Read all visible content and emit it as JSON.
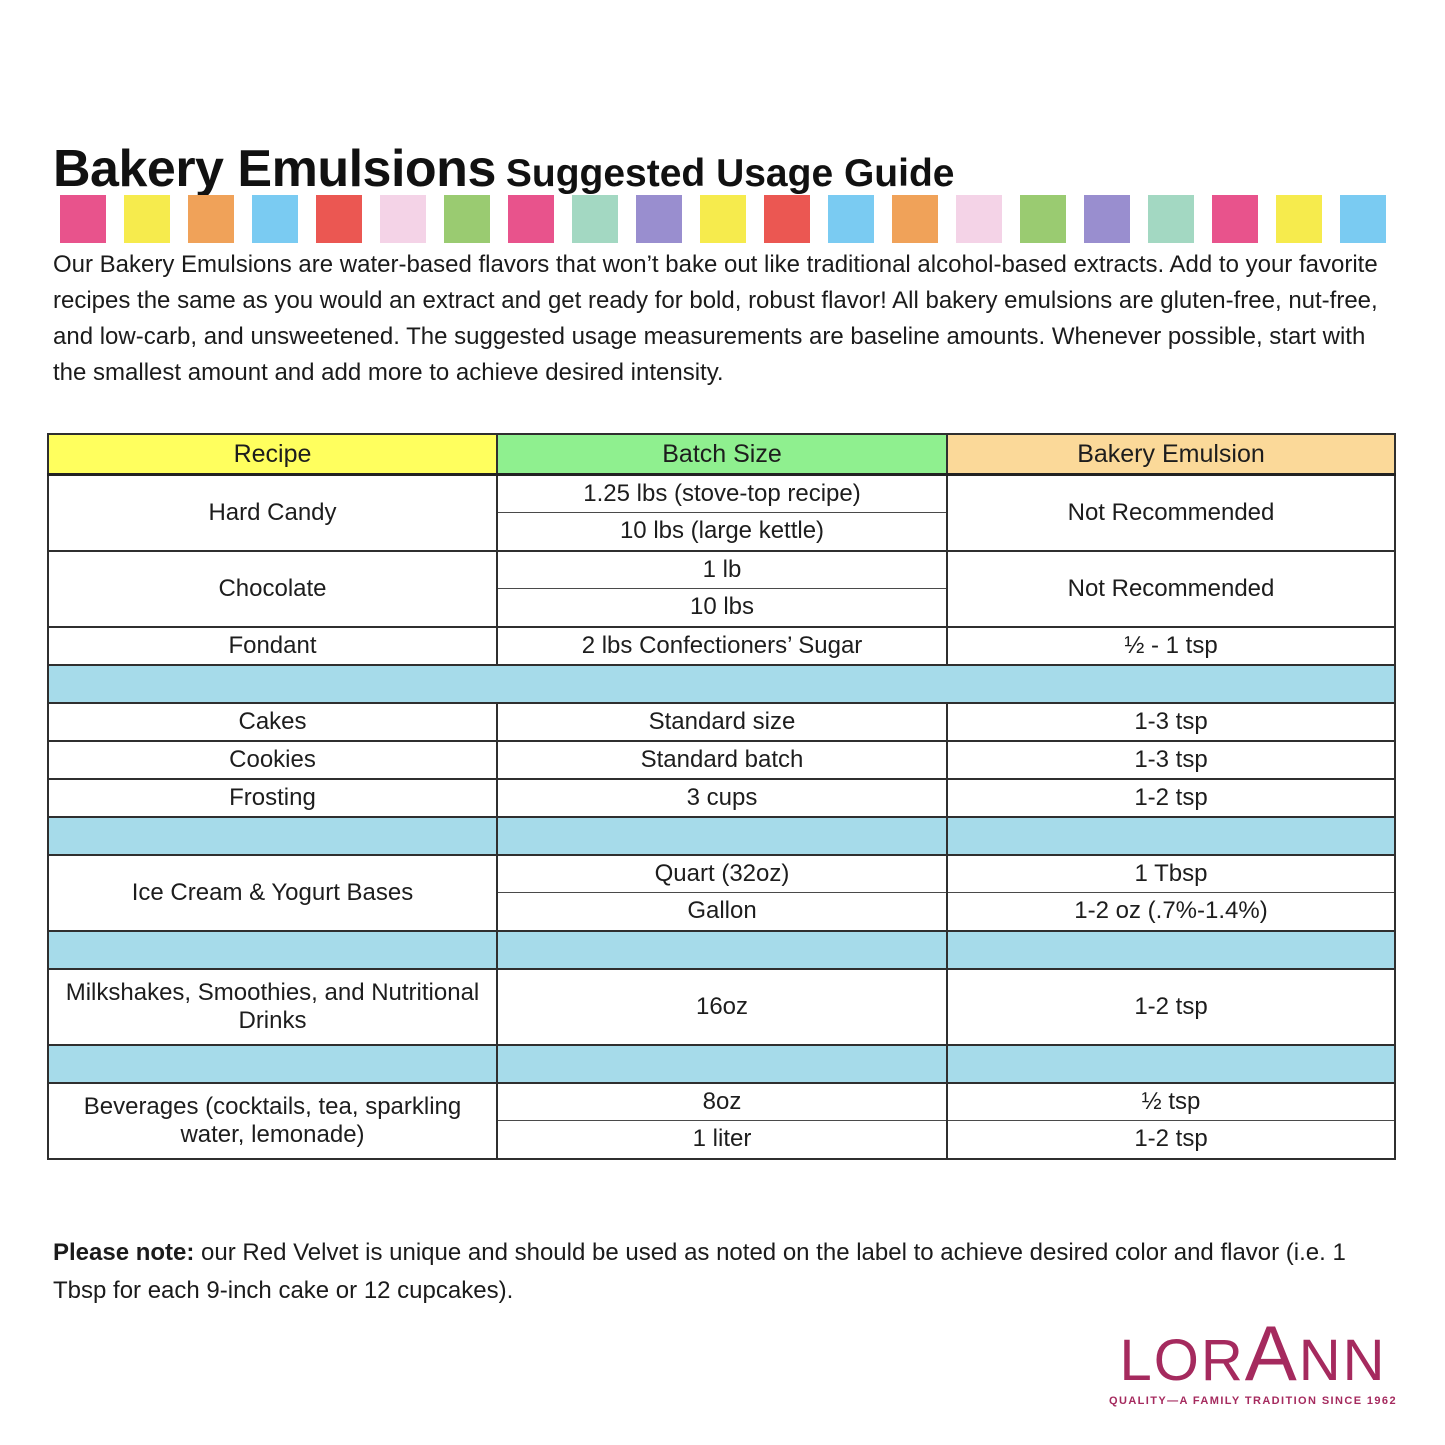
{
  "title": {
    "main": "Bakery Emulsions",
    "sub": "Suggested Usage Guide"
  },
  "palette": {
    "squares": [
      "#E8538C",
      "#F6EB4D",
      "#F0A259",
      "#7ACBF2",
      "#EB5752",
      "#F4D3E7",
      "#9ACB71",
      "#E8538C",
      "#A3D8C2",
      "#998ECF",
      "#F6EB4D",
      "#EB5752",
      "#7ACBF2",
      "#F0A259",
      "#F4D3E7",
      "#9ACB71",
      "#998ECF",
      "#A3D8C2",
      "#E8538C",
      "#F6EB4D",
      "#7ACBF2"
    ]
  },
  "intro": {
    "text": "Our Bakery Emulsions are water-based flavors that won’t bake out like traditional alcohol-based extracts. Add to your favorite recipes the same as you would an extract and get ready for bold, robust flavor! All bakery emulsions are gluten-free, nut-free, and low-carb, and unsweetened. The suggested usage measurements are baseline amounts. Whenever possible, start with the smallest amount and add more to achieve desired intensity."
  },
  "table": {
    "header": {
      "recipe": "Recipe",
      "batch": "Batch Size",
      "emulsion": "Bakery Emulsion"
    },
    "header_colors": {
      "recipe": "#FFFF5E",
      "batch": "#8FF08F",
      "emulsion": "#FBD999"
    },
    "spacer_color": "#A6DBEA",
    "hard_candy": {
      "recipe": "Hard Candy",
      "batch1": "1.25 lbs (stove-top recipe)",
      "batch2": "10 lbs (large kettle)",
      "emulsion": "Not Recommended"
    },
    "chocolate": {
      "recipe": "Chocolate",
      "batch1": "1 lb",
      "batch2": "10 lbs",
      "emulsion": "Not Recommended"
    },
    "fondant": {
      "recipe": "Fondant",
      "batch": "2 lbs Confectioners’ Sugar",
      "emulsion": "½ - 1 tsp"
    },
    "cakes": {
      "recipe": "Cakes",
      "batch": "Standard size",
      "emulsion": "1-3 tsp"
    },
    "cookies": {
      "recipe": "Cookies",
      "batch": "Standard batch",
      "emulsion": "1-3 tsp"
    },
    "frosting": {
      "recipe": "Frosting",
      "batch": "3 cups",
      "emulsion": "1-2 tsp"
    },
    "ice_cream": {
      "recipe": "Ice Cream & Yogurt Bases",
      "batch1": "Quart (32oz)",
      "emulsion1": "1 Tbsp",
      "batch2": "Gallon",
      "emulsion2": "1-2 oz (.7%-1.4%)"
    },
    "milkshakes": {
      "recipe": "Milkshakes, Smoothies, and Nutritional Drinks",
      "batch": "16oz",
      "emulsion": "1-2 tsp"
    },
    "beverages": {
      "recipe": "Beverages (cocktails, tea, sparkling water, lemonade)",
      "batch1": "8oz",
      "emulsion1": "½ tsp",
      "batch2": "1 liter",
      "emulsion2": "1-2 tsp"
    }
  },
  "note": {
    "bold": "Please note:",
    "text": " our Red Velvet is unique and should be used as noted on the label to achieve desired color and flavor (i.e. 1 Tbsp for each 9-inch cake or 12 cupcakes)."
  },
  "logo": {
    "word_start": "LOR",
    "word_mid": "A",
    "word_end": "NN",
    "tagline": "QUALITY—A FAMILY TRADITION SINCE 1962",
    "color": "#A52A5E"
  }
}
